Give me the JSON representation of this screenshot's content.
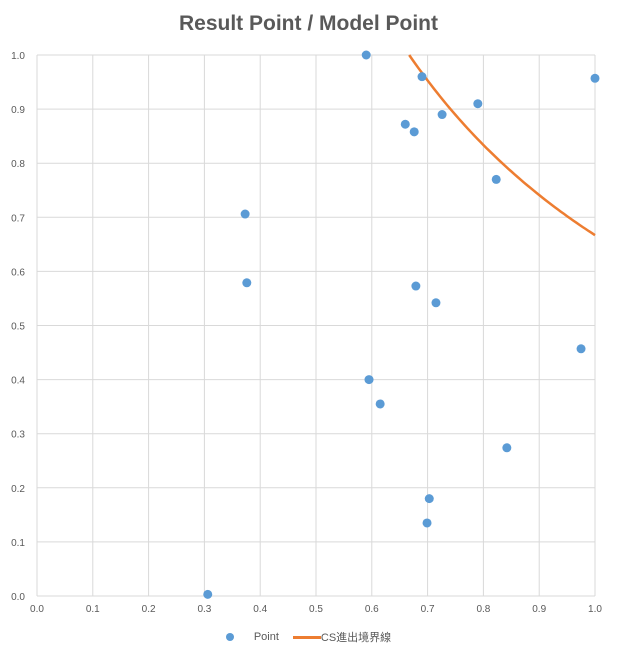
{
  "chart_data": {
    "type": "scatter",
    "title": "Result Point / Model Point",
    "xlabel": "",
    "ylabel": "",
    "xlim": [
      0,
      1
    ],
    "ylim": [
      0,
      1
    ],
    "x_ticks": [
      "0.0",
      "0.1",
      "0.2",
      "0.3",
      "0.4",
      "0.5",
      "0.6",
      "0.7",
      "0.8",
      "0.9",
      "1.0"
    ],
    "y_ticks": [
      "0.0",
      "0.1",
      "0.2",
      "0.3",
      "0.4",
      "0.5",
      "0.6",
      "0.7",
      "0.8",
      "0.9",
      "1.0"
    ],
    "grid": true,
    "legend_position": "bottom",
    "series": [
      {
        "name": "Point",
        "type": "scatter",
        "color": "#5b9bd5",
        "points": [
          [
            0.59,
            1.0
          ],
          [
            0.69,
            0.96
          ],
          [
            1.0,
            0.957
          ],
          [
            0.79,
            0.91
          ],
          [
            0.726,
            0.89
          ],
          [
            0.66,
            0.872
          ],
          [
            0.676,
            0.858
          ],
          [
            0.823,
            0.77
          ],
          [
            0.373,
            0.706
          ],
          [
            0.376,
            0.579
          ],
          [
            0.679,
            0.573
          ],
          [
            0.715,
            0.542
          ],
          [
            0.975,
            0.457
          ],
          [
            0.595,
            0.4
          ],
          [
            0.615,
            0.355
          ],
          [
            0.842,
            0.274
          ],
          [
            0.703,
            0.18
          ],
          [
            0.699,
            0.135
          ],
          [
            0.306,
            0.003
          ]
        ]
      },
      {
        "name": "CS進出境界線",
        "type": "line",
        "color": "#ed7d31",
        "points": [
          [
            0.667,
            1.0
          ],
          [
            0.7,
            0.952
          ],
          [
            0.75,
            0.889
          ],
          [
            0.8,
            0.833
          ],
          [
            0.85,
            0.784
          ],
          [
            0.9,
            0.741
          ],
          [
            0.95,
            0.702
          ],
          [
            1.0,
            0.667
          ]
        ]
      }
    ]
  }
}
